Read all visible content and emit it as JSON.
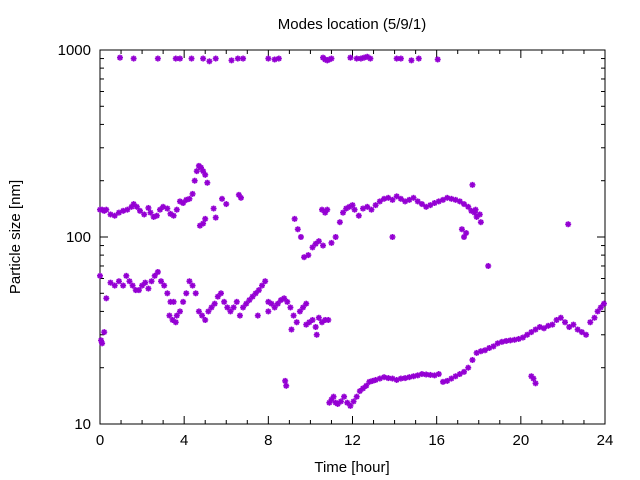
{
  "chart_data": {
    "type": "scatter",
    "title": "Modes location (5/9/1)",
    "xlabel": "Time [hour]",
    "ylabel": "Particle size [nm]",
    "xlim": [
      0,
      24
    ],
    "ylim": [
      10,
      1000
    ],
    "yscale": "log",
    "grid": false,
    "xticks": [
      0,
      4,
      8,
      12,
      16,
      20,
      24
    ],
    "xtick_labels": [
      "0",
      "4",
      "8",
      "12",
      "16",
      "20",
      "24"
    ],
    "yticks": [
      10,
      100,
      1000
    ],
    "ytick_labels": [
      "10",
      "100",
      "1000"
    ],
    "marker_color": "#9400d3",
    "series": [
      {
        "x": [
          0.95,
          1.6,
          2.75,
          3.6,
          3.8,
          4.35,
          4.9,
          5.2,
          5.5,
          6.25,
          6.55,
          6.8,
          8,
          8.3,
          8.5,
          10.6,
          10.7,
          10.8,
          10.9,
          11,
          11.9,
          12.2,
          12.4,
          12.55,
          12.7,
          12.85,
          14.1,
          14.3,
          14.8,
          15.15,
          16.05
        ],
        "y": [
          910,
          900,
          900,
          900,
          900,
          900,
          900,
          870,
          900,
          880,
          900,
          900,
          900,
          890,
          900,
          910,
          890,
          880,
          890,
          900,
          910,
          900,
          900,
          910,
          920,
          900,
          900,
          900,
          880,
          900,
          890
        ]
      },
      {
        "x": [
          0,
          0.1,
          0.2,
          0.3,
          0.5,
          0.7,
          0.9,
          1.1,
          1.3,
          1.5,
          1.6,
          1.75,
          1.9,
          2.1,
          2.3,
          2.4,
          2.55,
          2.7,
          2.85,
          3.0,
          3.2,
          3.35,
          3.5,
          3.65,
          3.8,
          3.95,
          4.1,
          4.25,
          4.4,
          4.5,
          4.6,
          4.7,
          4.8,
          4.9,
          5.0,
          5.1,
          4.75,
          4.9,
          5.0,
          5.4,
          5.5,
          5.8,
          6.0,
          6.6,
          6.7,
          9.25,
          9.4,
          9.55,
          9.7,
          9.9,
          10.1,
          10.25,
          10.4,
          10.55,
          10.7,
          10.8,
          10.6,
          11.0,
          11.2,
          11.4,
          11.55,
          11.7,
          11.85,
          12.0,
          12.1,
          12.3,
          12.5,
          12.7,
          12.9,
          13.1,
          13.3,
          13.5,
          13.7,
          13.9,
          14.1,
          14.3,
          14.5,
          14.7,
          14.9,
          15.1,
          15.3,
          15.5,
          15.7,
          15.9,
          16.1,
          16.3,
          16.5,
          16.7,
          16.9,
          17.1,
          17.3,
          17.5,
          17.65,
          17.8,
          17.9,
          18.1,
          17.7,
          17.85,
          18.05,
          17.2,
          17.3,
          17.4,
          13.9,
          18.45,
          22.25
        ],
        "y": [
          140,
          140,
          138,
          140,
          132,
          130,
          135,
          138,
          140,
          145,
          150,
          145,
          138,
          132,
          143,
          135,
          128,
          130,
          140,
          145,
          142,
          133,
          130,
          140,
          155,
          152,
          158,
          160,
          170,
          200,
          225,
          240,
          235,
          225,
          215,
          195,
          115,
          118,
          125,
          142,
          127,
          160,
          150,
          168,
          162,
          125,
          110,
          100,
          78,
          80,
          88,
          92,
          95,
          140,
          135,
          140,
          90,
          93,
          100,
          120,
          135,
          142,
          145,
          148,
          140,
          130,
          142,
          145,
          140,
          148,
          155,
          160,
          162,
          158,
          165,
          160,
          155,
          158,
          162,
          155,
          150,
          145,
          148,
          152,
          155,
          158,
          162,
          160,
          158,
          155,
          150,
          145,
          138,
          135,
          128,
          120,
          190,
          140,
          132,
          110,
          100,
          105,
          100,
          70,
          117
        ]
      },
      {
        "x": [
          0,
          0.05,
          0.1,
          0.2,
          0.3,
          0.5,
          0.7,
          0.9,
          1.1,
          1.25,
          1.4,
          1.55,
          1.7,
          1.85,
          2.0,
          2.15,
          2.3,
          2.45,
          2.6,
          2.75,
          2.9,
          3.05,
          3.2,
          3.35,
          3.5,
          3.65,
          3.8,
          3.95,
          4.1,
          4.25,
          4.4,
          4.55,
          4.7,
          4.85,
          5.0,
          5.15,
          5.3,
          5.45,
          5.6,
          5.75,
          5.9,
          6.05,
          6.2,
          6.35,
          6.5,
          6.65,
          6.8,
          6.95,
          7.1,
          7.25,
          7.4,
          7.55,
          7.7,
          7.85,
          8.0,
          8.15,
          8.3,
          8.45,
          8.6,
          8.75,
          8.9,
          9.05,
          9.2,
          9.35,
          9.5,
          9.65,
          9.8,
          9.95,
          10.1,
          10.25,
          10.4,
          10.55,
          10.7,
          10.85,
          3.3,
          3.45,
          3.6,
          7.5,
          8.0,
          9.1,
          9.8,
          10.3,
          8.8,
          8.85
        ],
        "y": [
          62,
          28,
          27,
          31,
          47,
          57,
          55,
          58,
          55,
          62,
          58,
          55,
          52,
          52,
          55,
          57,
          53,
          58,
          62,
          65,
          58,
          55,
          50,
          45,
          45,
          38,
          40,
          45,
          50,
          58,
          55,
          50,
          40,
          38,
          36,
          40,
          42,
          44,
          48,
          50,
          45,
          42,
          40,
          42,
          45,
          38,
          42,
          44,
          46,
          48,
          50,
          52,
          55,
          58,
          45,
          44,
          42,
          44,
          46,
          47,
          45,
          42,
          38,
          35,
          40,
          42,
          44,
          35,
          36,
          33,
          37,
          35,
          36,
          36,
          38,
          36,
          35,
          38,
          40,
          32,
          34,
          30,
          17,
          16
        ]
      },
      {
        "x": [
          10.9,
          11.0,
          11.1,
          11.2,
          11.3,
          11.45,
          11.6,
          11.75,
          11.9,
          12.05,
          12.2,
          12.35,
          12.5,
          12.65,
          12.8,
          12.95,
          13.1,
          13.3,
          13.5,
          13.7,
          13.9,
          14.1,
          14.3,
          14.5,
          14.7,
          14.9,
          15.1,
          15.3,
          15.5,
          15.7,
          15.9,
          16.1,
          16.3,
          16.5,
          16.7,
          16.9,
          17.1,
          17.3,
          17.5,
          17.7,
          17.9,
          18.1,
          18.3,
          18.5,
          18.7,
          18.9,
          19.1,
          19.3,
          19.5,
          19.7,
          19.9,
          20.1,
          20.3,
          20.5,
          20.7,
          20.9,
          21.1,
          21.3,
          21.5,
          21.7,
          21.9,
          22.1,
          22.3,
          22.5,
          22.7,
          22.9,
          23.1,
          23.3,
          23.5,
          23.65,
          23.8,
          23.95,
          20.5,
          20.6,
          20.7
        ],
        "y": [
          13,
          13.5,
          14,
          13,
          12.8,
          13.2,
          14,
          13,
          12.5,
          13.2,
          14,
          15,
          15.5,
          16,
          16.8,
          17,
          17.2,
          17.5,
          17.8,
          17.6,
          17.5,
          17.2,
          17.5,
          17.6,
          17.8,
          18,
          18.2,
          18.5,
          18.4,
          18.3,
          18.2,
          18.5,
          16.8,
          17,
          17.5,
          18,
          18.5,
          19,
          20,
          22,
          24,
          24.5,
          24.8,
          25.5,
          26,
          27,
          27.5,
          27.8,
          28,
          28.2,
          28.5,
          29,
          30,
          31,
          32,
          33,
          32.5,
          33.5,
          34,
          36,
          37,
          35,
          33,
          34,
          32,
          31,
          30,
          35,
          37,
          40,
          42,
          44,
          18,
          17.5,
          16.5
        ]
      }
    ]
  }
}
